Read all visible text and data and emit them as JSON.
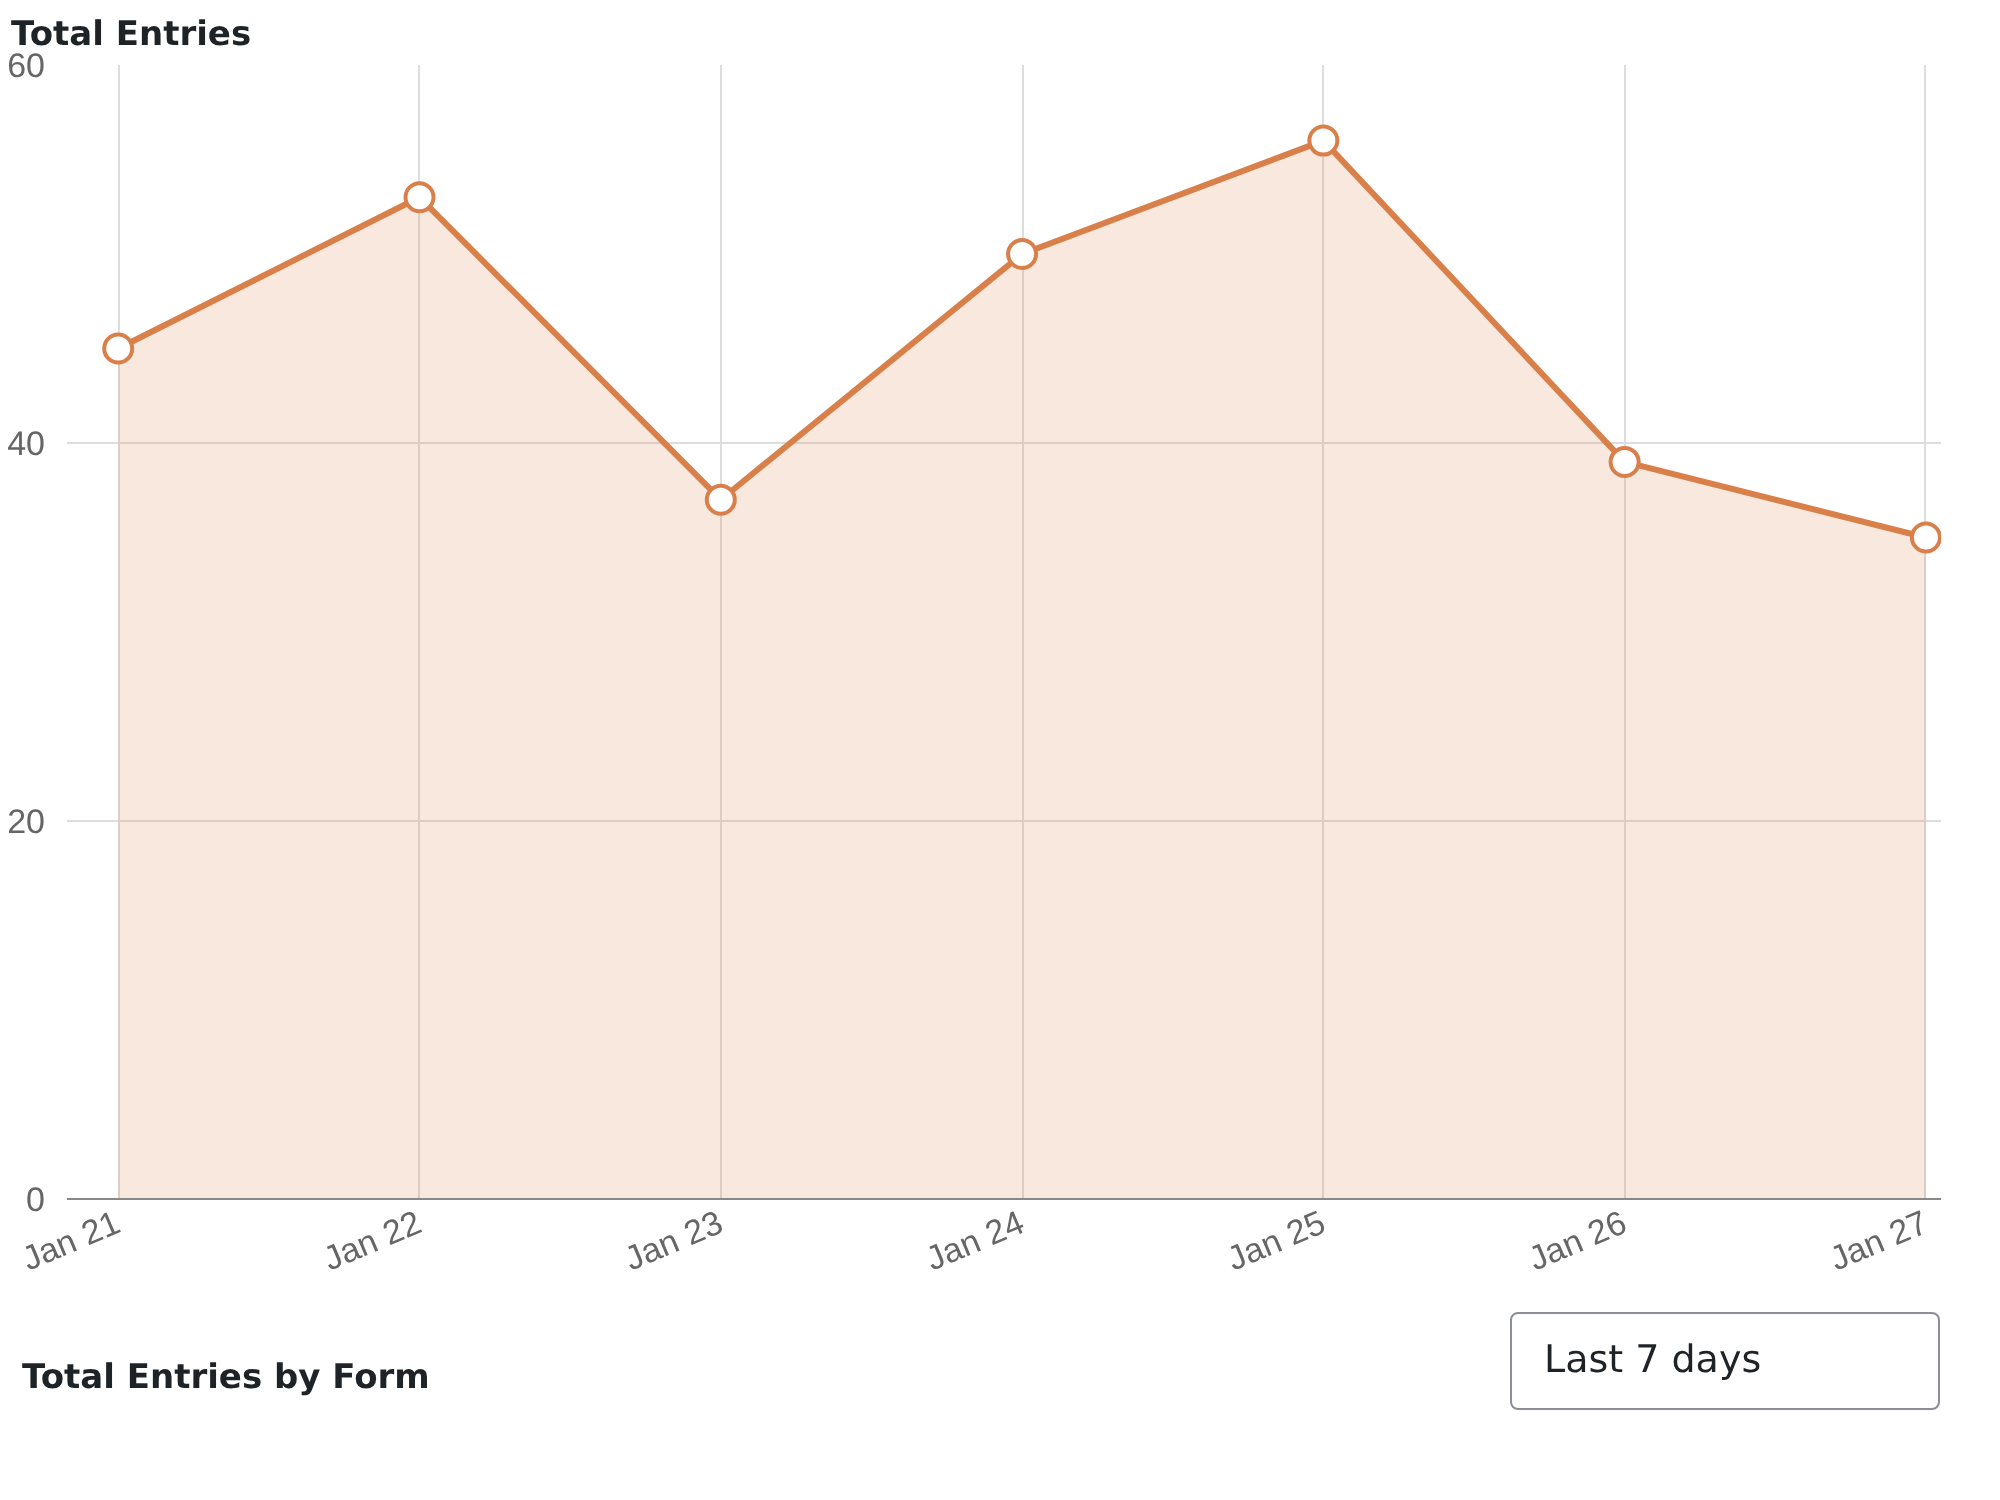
{
  "chart_data": {
    "type": "area",
    "title": "Total Entries",
    "categories": [
      "Jan 21",
      "Jan 22",
      "Jan 23",
      "Jan 24",
      "Jan 25",
      "Jan 26",
      "Jan 27"
    ],
    "series": [
      {
        "color": "#d9804a",
        "values": [
          45,
          53,
          37,
          50,
          56,
          39,
          35
        ]
      }
    ],
    "ylim": [
      0,
      60
    ],
    "yticks": [
      0,
      20,
      40,
      60
    ],
    "grid": true,
    "marker": "circle",
    "line_style": "solid",
    "annotations": [
      "Total Entries by Form",
      "Last 7 days"
    ]
  }
}
